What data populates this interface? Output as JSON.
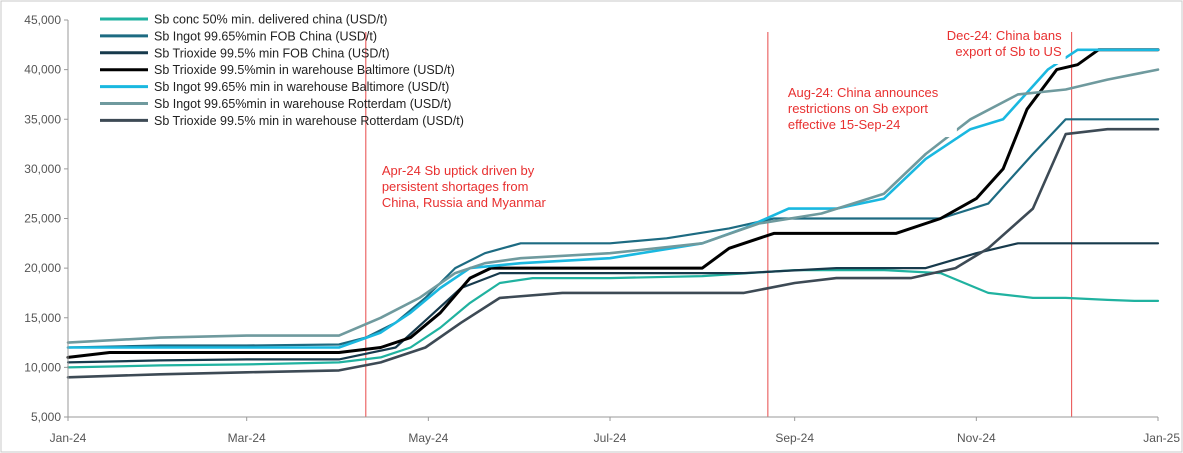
{
  "chart_data": {
    "type": "line",
    "title": "",
    "xlabel": "",
    "ylabel": "",
    "x_start": "2024-01-01",
    "x_end": "2025-01-01",
    "x_ticks": [
      {
        "date": "2024-01-01",
        "label": "Jan-24"
      },
      {
        "date": "2024-03-01",
        "label": "Mar-24"
      },
      {
        "date": "2024-05-01",
        "label": "May-24"
      },
      {
        "date": "2024-07-01",
        "label": "Jul-24"
      },
      {
        "date": "2024-09-01",
        "label": "Sep-24"
      },
      {
        "date": "2024-11-01",
        "label": "Nov-24"
      },
      {
        "date": "2025-01-01",
        "label": "Jan-25"
      }
    ],
    "ylim": [
      5000,
      45000
    ],
    "y_ticks": [
      5000,
      10000,
      15000,
      20000,
      25000,
      30000,
      35000,
      40000,
      45000
    ],
    "y_tick_labels": [
      "5,000",
      "10,000",
      "15,000",
      "20,000",
      "25,000",
      "30,000",
      "35,000",
      "40,000",
      "45,000"
    ],
    "grid": false,
    "legend_position": "top-left",
    "series": [
      {
        "name": "Sb conc 50% min. delivered china (USD/t)",
        "color": "#20b2a0",
        "width": 2.2,
        "points": [
          [
            "2024-01-01",
            10000
          ],
          [
            "2024-02-01",
            10200
          ],
          [
            "2024-03-01",
            10300
          ],
          [
            "2024-04-01",
            10500
          ],
          [
            "2024-04-15",
            11000
          ],
          [
            "2024-04-25",
            12000
          ],
          [
            "2024-05-05",
            14000
          ],
          [
            "2024-05-15",
            16500
          ],
          [
            "2024-05-25",
            18500
          ],
          [
            "2024-06-05",
            19000
          ],
          [
            "2024-07-01",
            19000
          ],
          [
            "2024-08-01",
            19200
          ],
          [
            "2024-09-01",
            19800
          ],
          [
            "2024-10-01",
            19800
          ],
          [
            "2024-10-20",
            19500
          ],
          [
            "2024-11-05",
            17500
          ],
          [
            "2024-11-20",
            17000
          ],
          [
            "2024-12-01",
            17000
          ],
          [
            "2024-12-15",
            16800
          ],
          [
            "2024-12-24",
            16700
          ],
          [
            "2025-01-01",
            16700
          ]
        ]
      },
      {
        "name": "Sb Ingot 99.65%min FOB China  (USD/t)",
        "color": "#1d6b82",
        "width": 2.2,
        "points": [
          [
            "2024-01-01",
            12000
          ],
          [
            "2024-02-01",
            12200
          ],
          [
            "2024-03-01",
            12200
          ],
          [
            "2024-04-01",
            12300
          ],
          [
            "2024-04-10",
            13000
          ],
          [
            "2024-04-20",
            14500
          ],
          [
            "2024-04-30",
            17000
          ],
          [
            "2024-05-10",
            20000
          ],
          [
            "2024-05-20",
            21500
          ],
          [
            "2024-06-01",
            22500
          ],
          [
            "2024-07-01",
            22500
          ],
          [
            "2024-07-20",
            23000
          ],
          [
            "2024-08-10",
            24000
          ],
          [
            "2024-08-25",
            25000
          ],
          [
            "2024-09-10",
            25000
          ],
          [
            "2024-10-01",
            25000
          ],
          [
            "2024-10-20",
            25000
          ],
          [
            "2024-11-05",
            26500
          ],
          [
            "2024-11-20",
            31500
          ],
          [
            "2024-12-01",
            35000
          ],
          [
            "2024-12-15",
            35000
          ],
          [
            "2025-01-01",
            35000
          ]
        ]
      },
      {
        "name": "Sb Trioxide 99.5% min FOB China (USD/t)",
        "color": "#173a4c",
        "width": 2.2,
        "points": [
          [
            "2024-01-01",
            10500
          ],
          [
            "2024-02-01",
            10700
          ],
          [
            "2024-03-01",
            10800
          ],
          [
            "2024-04-01",
            10800
          ],
          [
            "2024-04-20",
            12000
          ],
          [
            "2024-05-01",
            15000
          ],
          [
            "2024-05-12",
            18000
          ],
          [
            "2024-05-25",
            19500
          ],
          [
            "2024-06-15",
            19500
          ],
          [
            "2024-07-15",
            19500
          ],
          [
            "2024-08-15",
            19500
          ],
          [
            "2024-09-15",
            20000
          ],
          [
            "2024-10-15",
            20000
          ],
          [
            "2024-11-01",
            21500
          ],
          [
            "2024-11-15",
            22500
          ],
          [
            "2024-12-15",
            22500
          ],
          [
            "2025-01-01",
            22500
          ]
        ]
      },
      {
        "name": "Sb Trioxide 99.5%min in warehouse Baltimore  (USD/t)",
        "color": "#000000",
        "width": 3,
        "points": [
          [
            "2024-01-01",
            11000
          ],
          [
            "2024-01-15",
            11500
          ],
          [
            "2024-02-01",
            11500
          ],
          [
            "2024-03-01",
            11500
          ],
          [
            "2024-04-01",
            11500
          ],
          [
            "2024-04-15",
            12000
          ],
          [
            "2024-04-25",
            13000
          ],
          [
            "2024-05-05",
            15500
          ],
          [
            "2024-05-15",
            19000
          ],
          [
            "2024-05-22",
            20000
          ],
          [
            "2024-07-01",
            20000
          ],
          [
            "2024-08-01",
            20000
          ],
          [
            "2024-08-10",
            22000
          ],
          [
            "2024-08-25",
            23500
          ],
          [
            "2024-09-15",
            23500
          ],
          [
            "2024-10-05",
            23500
          ],
          [
            "2024-10-20",
            25000
          ],
          [
            "2024-11-01",
            27000
          ],
          [
            "2024-11-10",
            30000
          ],
          [
            "2024-11-18",
            36000
          ],
          [
            "2024-11-28",
            40000
          ],
          [
            "2024-12-05",
            40500
          ],
          [
            "2024-12-12",
            42000
          ],
          [
            "2024-12-20",
            42000
          ],
          [
            "2025-01-01",
            42000
          ]
        ]
      },
      {
        "name": "Sb Ingot 99.65% min in warehouse Baltimore  (USD/t)",
        "color": "#1ab8e0",
        "width": 2.6,
        "points": [
          [
            "2024-01-01",
            12000
          ],
          [
            "2024-02-01",
            12000
          ],
          [
            "2024-03-01",
            12000
          ],
          [
            "2024-04-01",
            12000
          ],
          [
            "2024-04-15",
            13500
          ],
          [
            "2024-04-25",
            15500
          ],
          [
            "2024-05-05",
            18000
          ],
          [
            "2024-05-15",
            20000
          ],
          [
            "2024-06-01",
            20500
          ],
          [
            "2024-07-01",
            21000
          ],
          [
            "2024-08-01",
            22500
          ],
          [
            "2024-08-15",
            24000
          ],
          [
            "2024-08-30",
            26000
          ],
          [
            "2024-09-15",
            26000
          ],
          [
            "2024-10-01",
            27000
          ],
          [
            "2024-10-15",
            31000
          ],
          [
            "2024-10-30",
            34000
          ],
          [
            "2024-11-10",
            35000
          ],
          [
            "2024-11-25",
            40000
          ],
          [
            "2024-12-05",
            42000
          ],
          [
            "2024-12-20",
            42000
          ],
          [
            "2025-01-01",
            42000
          ]
        ]
      },
      {
        "name": "Sb Ingot 99.65%min in warehouse Rotterdam (USD/t)",
        "color": "#6f9a9e",
        "width": 2.6,
        "points": [
          [
            "2024-01-01",
            12500
          ],
          [
            "2024-02-01",
            13000
          ],
          [
            "2024-03-01",
            13200
          ],
          [
            "2024-04-01",
            13200
          ],
          [
            "2024-04-15",
            15000
          ],
          [
            "2024-04-28",
            17000
          ],
          [
            "2024-05-10",
            19500
          ],
          [
            "2024-05-20",
            20500
          ],
          [
            "2024-06-01",
            21000
          ],
          [
            "2024-07-01",
            21500
          ],
          [
            "2024-08-01",
            22500
          ],
          [
            "2024-08-20",
            24500
          ],
          [
            "2024-09-10",
            25500
          ],
          [
            "2024-10-01",
            27500
          ],
          [
            "2024-10-15",
            31500
          ],
          [
            "2024-10-30",
            35000
          ],
          [
            "2024-11-15",
            37500
          ],
          [
            "2024-12-01",
            38000
          ],
          [
            "2024-12-15",
            39000
          ],
          [
            "2025-01-01",
            40000
          ]
        ]
      },
      {
        "name": "Sb Trioxide 99.5% min in warehouse Rotterdam (USD/t)",
        "color": "#3d4a55",
        "width": 2.6,
        "points": [
          [
            "2024-01-01",
            9000
          ],
          [
            "2024-02-01",
            9300
          ],
          [
            "2024-03-01",
            9500
          ],
          [
            "2024-04-01",
            9700
          ],
          [
            "2024-04-15",
            10500
          ],
          [
            "2024-04-30",
            12000
          ],
          [
            "2024-05-12",
            14500
          ],
          [
            "2024-05-25",
            17000
          ],
          [
            "2024-06-15",
            17500
          ],
          [
            "2024-07-15",
            17500
          ],
          [
            "2024-08-15",
            17500
          ],
          [
            "2024-09-01",
            18500
          ],
          [
            "2024-09-15",
            19000
          ],
          [
            "2024-10-10",
            19000
          ],
          [
            "2024-10-25",
            20000
          ],
          [
            "2024-11-05",
            22000
          ],
          [
            "2024-11-20",
            26000
          ],
          [
            "2024-12-01",
            33500
          ],
          [
            "2024-12-15",
            34000
          ],
          [
            "2025-01-01",
            34000
          ]
        ]
      }
    ],
    "annotations": [
      {
        "date": "2024-04-10",
        "lines": [
          "Apr-24 Sb uptick driven by",
          "persistent shortages from",
          "China, Russia and Myanmar"
        ]
      },
      {
        "date": "2024-08-23",
        "lines": [
          "Aug-24: China announces",
          "restrictions on Sb export",
          "effective 15-Sep-24"
        ]
      },
      {
        "date": "2024-12-03",
        "lines": [
          "Dec-24: China bans",
          "export of Sb to US"
        ]
      }
    ]
  }
}
